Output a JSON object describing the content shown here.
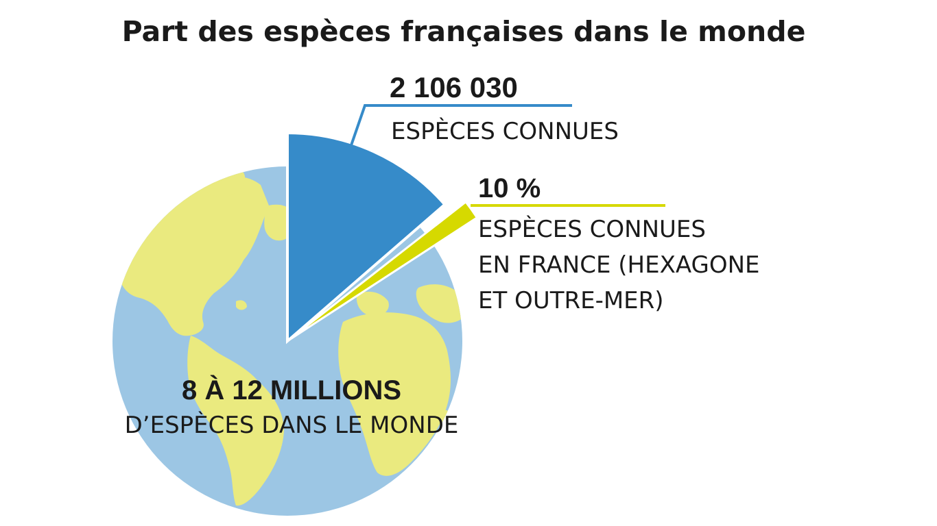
{
  "colors": {
    "ocean": "#9cc6e4",
    "land": "#eaea7f",
    "known": "#368bc9",
    "france": "#d6d900",
    "text": "#1a1a1a"
  },
  "icons": [
    "globe-icon"
  ],
  "chart_data": {
    "type": "pie",
    "title": "Part des espèces françaises dans le monde",
    "total": {
      "value": "8 à 12 millions",
      "label": "8 À 12 MILLIONS",
      "sublabel": "D’ESPÈCES DANS LE MONDE"
    },
    "slices": [
      {
        "key": "known",
        "value": 2106030,
        "value_label": "2 106 030",
        "label_lines": [
          "ESPÈCES CONNUES"
        ]
      },
      {
        "key": "france",
        "percent_of_known": 10,
        "value_label": "10 %",
        "label_lines": [
          "ESPÈCES CONNUES",
          "EN FRANCE (HEXAGONE",
          "ET OUTRE-MER)"
        ]
      }
    ]
  }
}
